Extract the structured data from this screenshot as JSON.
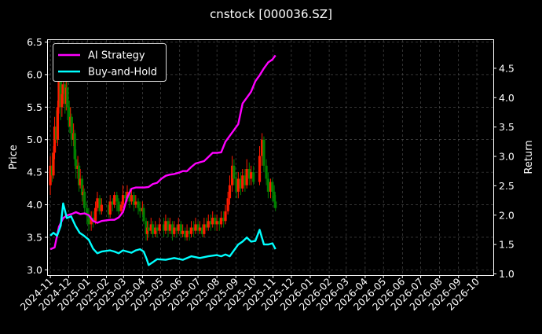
{
  "chart_data": {
    "type": "line",
    "title": "cnstock [000036.SZ]",
    "ylabel_left": "Price",
    "ylabel_right": "Return",
    "xlabel": "",
    "y_left_ticks": [
      "3.0",
      "3.5",
      "4.0",
      "4.5",
      "5.0",
      "5.5",
      "6.0",
      "6.5"
    ],
    "y_right_ticks": [
      "1.0",
      "1.5",
      "2.0",
      "2.5",
      "3.0",
      "3.5",
      "4.0",
      "4.5"
    ],
    "x_ticks": [
      "2024-11",
      "2024-12",
      "2025-01",
      "2025-02",
      "2025-03",
      "2025-04",
      "2025-05",
      "2025-06",
      "2025-07",
      "2025-08",
      "2025-09",
      "2025-10",
      "2025-11",
      "2025-12",
      "2026-01",
      "2026-02",
      "2026-03",
      "2026-04",
      "2026-05",
      "2026-06",
      "2026-07",
      "2026-08",
      "2026-09",
      "2026-10"
    ],
    "ylim_left": [
      2.92,
      6.53
    ],
    "ylim_right": [
      0.98,
      4.98
    ],
    "x_range": [
      "2024-10-28",
      "2026-10-28"
    ],
    "legend": {
      "position": "top-left",
      "entries": [
        "AI Strategy",
        "Buy-and-Hold"
      ]
    },
    "grid": true,
    "colors": {
      "ai": "#ff00ff",
      "bh": "#00ffff",
      "up": "#ff1a00",
      "down": "#008000",
      "background": "#000000",
      "grid": "#555555"
    },
    "series": [
      {
        "name": "AI Strategy",
        "axis": "right",
        "x": [
          "2024-11-01",
          "2024-11-08",
          "2024-11-15",
          "2024-11-22",
          "2024-11-29",
          "2024-12-06",
          "2024-12-13",
          "2024-12-20",
          "2024-12-27",
          "2025-01-03",
          "2025-01-10",
          "2025-01-17",
          "2025-01-24",
          "2025-02-07",
          "2025-02-14",
          "2025-02-21",
          "2025-02-28",
          "2025-03-07",
          "2025-03-14",
          "2025-03-21",
          "2025-03-28",
          "2025-04-04",
          "2025-04-11",
          "2025-04-18",
          "2025-04-25",
          "2025-05-02",
          "2025-05-09",
          "2025-05-16",
          "2025-05-23",
          "2025-05-30",
          "2025-06-06",
          "2025-06-13",
          "2025-06-20",
          "2025-06-27",
          "2025-07-04",
          "2025-07-11",
          "2025-07-18",
          "2025-07-25",
          "2025-08-01",
          "2025-08-08",
          "2025-08-15",
          "2025-08-22",
          "2025-08-29",
          "2025-09-05",
          "2025-09-12",
          "2025-09-19",
          "2025-09-26",
          "2025-10-03",
          "2025-10-10",
          "2025-10-17",
          "2025-10-24",
          "2025-10-31",
          "2025-11-05"
        ],
        "values": [
          1.42,
          1.45,
          1.8,
          1.95,
          2.0,
          2.02,
          2.05,
          2.02,
          2.03,
          2.0,
          1.9,
          1.87,
          1.9,
          1.92,
          1.92,
          1.96,
          2.05,
          2.3,
          2.45,
          2.47,
          2.47,
          2.47,
          2.48,
          2.53,
          2.55,
          2.62,
          2.67,
          2.69,
          2.7,
          2.72,
          2.75,
          2.75,
          2.82,
          2.88,
          2.9,
          2.92,
          2.99,
          3.06,
          3.06,
          3.07,
          3.25,
          3.35,
          3.45,
          3.55,
          3.9,
          4.0,
          4.1,
          4.28,
          4.38,
          4.5,
          4.6,
          4.65,
          4.72
        ]
      },
      {
        "name": "Buy-and-Hold",
        "axis": "right",
        "x": [
          "2024-11-01",
          "2024-11-06",
          "2024-11-12",
          "2024-11-18",
          "2024-11-22",
          "2024-11-28",
          "2024-12-05",
          "2024-12-12",
          "2024-12-19",
          "2024-12-26",
          "2025-01-03",
          "2025-01-10",
          "2025-01-17",
          "2025-01-24",
          "2025-02-07",
          "2025-02-14",
          "2025-02-21",
          "2025-02-28",
          "2025-03-07",
          "2025-03-14",
          "2025-03-21",
          "2025-03-28",
          "2025-04-03",
          "2025-04-08",
          "2025-04-11",
          "2025-04-18",
          "2025-04-25",
          "2025-05-09",
          "2025-05-23",
          "2025-06-06",
          "2025-06-20",
          "2025-07-04",
          "2025-07-18",
          "2025-08-01",
          "2025-08-08",
          "2025-08-15",
          "2025-08-22",
          "2025-08-29",
          "2025-09-05",
          "2025-09-12",
          "2025-09-19",
          "2025-09-26",
          "2025-10-03",
          "2025-10-10",
          "2025-10-17",
          "2025-10-24",
          "2025-10-31",
          "2025-11-05"
        ],
        "values": [
          1.65,
          1.7,
          1.65,
          1.82,
          2.2,
          1.95,
          1.98,
          1.82,
          1.7,
          1.65,
          1.58,
          1.43,
          1.35,
          1.38,
          1.4,
          1.38,
          1.35,
          1.4,
          1.38,
          1.36,
          1.4,
          1.42,
          1.38,
          1.25,
          1.15,
          1.2,
          1.25,
          1.24,
          1.27,
          1.24,
          1.3,
          1.27,
          1.3,
          1.32,
          1.3,
          1.33,
          1.3,
          1.4,
          1.5,
          1.55,
          1.62,
          1.55,
          1.56,
          1.75,
          1.5,
          1.5,
          1.52,
          1.42
        ]
      }
    ],
    "candles": [
      {
        "x": "2024-11-01",
        "open": 4.3,
        "close": 4.6,
        "high": 4.75,
        "low": 4.15
      },
      {
        "x": "2024-11-04",
        "open": 4.6,
        "close": 4.45,
        "high": 4.8,
        "low": 4.35
      },
      {
        "x": "2024-11-06",
        "open": 4.45,
        "close": 4.8,
        "high": 4.9,
        "low": 4.4
      },
      {
        "x": "2024-11-08",
        "open": 4.8,
        "close": 5.2,
        "high": 5.35,
        "low": 4.7
      },
      {
        "x": "2024-11-11",
        "open": 5.2,
        "close": 5.0,
        "high": 5.45,
        "low": 4.95
      },
      {
        "x": "2024-11-13",
        "open": 5.0,
        "close": 5.5,
        "high": 5.6,
        "low": 4.9
      },
      {
        "x": "2024-11-15",
        "open": 5.5,
        "close": 5.9,
        "high": 6.15,
        "low": 5.4
      },
      {
        "x": "2024-11-18",
        "open": 5.9,
        "close": 5.5,
        "high": 6.0,
        "low": 5.3
      },
      {
        "x": "2024-11-20",
        "open": 5.5,
        "close": 5.7,
        "high": 5.85,
        "low": 5.35
      },
      {
        "x": "2024-11-22",
        "open": 5.7,
        "close": 5.85,
        "high": 6.0,
        "low": 5.55
      },
      {
        "x": "2024-11-25",
        "open": 5.85,
        "close": 5.55,
        "high": 5.95,
        "low": 5.4
      },
      {
        "x": "2024-11-27",
        "open": 5.55,
        "close": 5.8,
        "high": 5.9,
        "low": 5.45
      },
      {
        "x": "2024-11-29",
        "open": 5.8,
        "close": 5.5,
        "high": 5.9,
        "low": 5.3
      },
      {
        "x": "2024-12-02",
        "open": 5.5,
        "close": 5.2,
        "high": 5.6,
        "low": 5.1
      },
      {
        "x": "2024-12-04",
        "open": 5.2,
        "close": 5.35,
        "high": 5.5,
        "low": 5.1
      },
      {
        "x": "2024-12-06",
        "open": 5.35,
        "close": 5.0,
        "high": 5.4,
        "low": 4.9
      },
      {
        "x": "2024-12-09",
        "open": 5.0,
        "close": 5.1,
        "high": 5.25,
        "low": 4.9
      },
      {
        "x": "2024-12-11",
        "open": 5.1,
        "close": 4.7,
        "high": 5.15,
        "low": 4.6
      },
      {
        "x": "2024-12-13",
        "open": 4.7,
        "close": 4.55,
        "high": 4.85,
        "low": 4.4
      },
      {
        "x": "2024-12-16",
        "open": 4.55,
        "close": 4.6,
        "high": 4.75,
        "low": 4.4
      },
      {
        "x": "2024-12-18",
        "open": 4.6,
        "close": 4.3,
        "high": 4.65,
        "low": 4.2
      },
      {
        "x": "2024-12-20",
        "open": 4.3,
        "close": 4.4,
        "high": 4.55,
        "low": 4.25
      },
      {
        "x": "2024-12-23",
        "open": 4.4,
        "close": 4.15,
        "high": 4.45,
        "low": 4.05
      },
      {
        "x": "2024-12-25",
        "open": 4.15,
        "close": 4.2,
        "high": 4.3,
        "low": 4.0
      },
      {
        "x": "2024-12-27",
        "open": 4.2,
        "close": 3.95,
        "high": 4.25,
        "low": 3.85
      },
      {
        "x": "2024-12-31",
        "open": 3.95,
        "close": 3.85,
        "high": 4.05,
        "low": 3.7
      },
      {
        "x": "2025-01-03",
        "open": 3.85,
        "close": 3.7,
        "high": 3.95,
        "low": 3.6
      },
      {
        "x": "2025-01-07",
        "open": 3.7,
        "close": 3.8,
        "high": 3.9,
        "low": 3.6
      },
      {
        "x": "2025-01-10",
        "open": 3.8,
        "close": 3.75,
        "high": 3.9,
        "low": 3.65
      },
      {
        "x": "2025-01-14",
        "open": 3.75,
        "close": 3.95,
        "high": 4.05,
        "low": 3.7
      },
      {
        "x": "2025-01-17",
        "open": 3.95,
        "close": 4.1,
        "high": 4.2,
        "low": 3.9
      },
      {
        "x": "2025-01-21",
        "open": 4.1,
        "close": 3.9,
        "high": 4.15,
        "low": 3.85
      },
      {
        "x": "2025-01-24",
        "open": 3.9,
        "close": 4.0,
        "high": 4.1,
        "low": 3.85
      },
      {
        "x": "2025-02-05",
        "open": 4.0,
        "close": 3.85,
        "high": 4.05,
        "low": 3.8
      },
      {
        "x": "2025-02-07",
        "open": 3.85,
        "close": 4.05,
        "high": 4.15,
        "low": 3.8
      },
      {
        "x": "2025-02-11",
        "open": 4.05,
        "close": 4.0,
        "high": 4.1,
        "low": 3.9
      },
      {
        "x": "2025-02-14",
        "open": 4.0,
        "close": 4.15,
        "high": 4.2,
        "low": 3.95
      },
      {
        "x": "2025-02-18",
        "open": 4.15,
        "close": 4.05,
        "high": 4.2,
        "low": 3.9
      },
      {
        "x": "2025-02-21",
        "open": 4.05,
        "close": 3.9,
        "high": 4.1,
        "low": 3.85
      },
      {
        "x": "2025-02-25",
        "open": 3.9,
        "close": 4.0,
        "high": 4.05,
        "low": 3.85
      },
      {
        "x": "2025-02-28",
        "open": 4.0,
        "close": 4.15,
        "high": 4.3,
        "low": 3.95
      },
      {
        "x": "2025-03-04",
        "open": 4.15,
        "close": 4.1,
        "high": 4.2,
        "low": 4.0
      },
      {
        "x": "2025-03-07",
        "open": 4.1,
        "close": 4.2,
        "high": 4.3,
        "low": 4.05
      },
      {
        "x": "2025-03-11",
        "open": 4.2,
        "close": 4.05,
        "high": 4.25,
        "low": 3.95
      },
      {
        "x": "2025-03-14",
        "open": 4.05,
        "close": 4.15,
        "high": 4.25,
        "low": 4.0
      },
      {
        "x": "2025-03-18",
        "open": 4.15,
        "close": 4.0,
        "high": 4.2,
        "low": 3.9
      },
      {
        "x": "2025-03-21",
        "open": 4.0,
        "close": 4.05,
        "high": 4.15,
        "low": 3.95
      },
      {
        "x": "2025-03-25",
        "open": 4.05,
        "close": 3.95,
        "high": 4.1,
        "low": 3.85
      },
      {
        "x": "2025-03-28",
        "open": 3.95,
        "close": 3.9,
        "high": 4.05,
        "low": 3.8
      },
      {
        "x": "2025-04-01",
        "open": 3.9,
        "close": 3.95,
        "high": 4.05,
        "low": 3.85
      },
      {
        "x": "2025-04-03",
        "open": 3.95,
        "close": 3.75,
        "high": 4.0,
        "low": 3.7
      },
      {
        "x": "2025-04-07",
        "open": 3.75,
        "close": 3.55,
        "high": 3.8,
        "low": 3.45
      },
      {
        "x": "2025-04-09",
        "open": 3.55,
        "close": 3.65,
        "high": 3.75,
        "low": 3.45
      },
      {
        "x": "2025-04-11",
        "open": 3.65,
        "close": 3.6,
        "high": 3.75,
        "low": 3.5
      },
      {
        "x": "2025-04-15",
        "open": 3.6,
        "close": 3.7,
        "high": 3.8,
        "low": 3.55
      },
      {
        "x": "2025-04-18",
        "open": 3.7,
        "close": 3.55,
        "high": 3.75,
        "low": 3.5
      },
      {
        "x": "2025-04-22",
        "open": 3.55,
        "close": 3.65,
        "high": 3.75,
        "low": 3.5
      },
      {
        "x": "2025-04-25",
        "open": 3.65,
        "close": 3.6,
        "high": 3.7,
        "low": 3.5
      },
      {
        "x": "2025-04-29",
        "open": 3.6,
        "close": 3.7,
        "high": 3.8,
        "low": 3.55
      },
      {
        "x": "2025-05-06",
        "open": 3.7,
        "close": 3.6,
        "high": 3.8,
        "low": 3.5
      },
      {
        "x": "2025-05-09",
        "open": 3.6,
        "close": 3.75,
        "high": 3.85,
        "low": 3.55
      },
      {
        "x": "2025-05-13",
        "open": 3.75,
        "close": 3.6,
        "high": 3.8,
        "low": 3.5
      },
      {
        "x": "2025-05-16",
        "open": 3.6,
        "close": 3.7,
        "high": 3.8,
        "low": 3.55
      },
      {
        "x": "2025-05-20",
        "open": 3.7,
        "close": 3.55,
        "high": 3.75,
        "low": 3.45
      },
      {
        "x": "2025-05-23",
        "open": 3.55,
        "close": 3.65,
        "high": 3.75,
        "low": 3.5
      },
      {
        "x": "2025-05-27",
        "open": 3.65,
        "close": 3.6,
        "high": 3.7,
        "low": 3.5
      },
      {
        "x": "2025-05-30",
        "open": 3.6,
        "close": 3.7,
        "high": 3.8,
        "low": 3.55
      },
      {
        "x": "2025-06-03",
        "open": 3.7,
        "close": 3.55,
        "high": 3.75,
        "low": 3.5
      },
      {
        "x": "2025-06-06",
        "open": 3.55,
        "close": 3.6,
        "high": 3.7,
        "low": 3.5
      },
      {
        "x": "2025-06-10",
        "open": 3.6,
        "close": 3.5,
        "high": 3.65,
        "low": 3.45
      },
      {
        "x": "2025-06-13",
        "open": 3.5,
        "close": 3.6,
        "high": 3.7,
        "low": 3.45
      },
      {
        "x": "2025-06-17",
        "open": 3.6,
        "close": 3.55,
        "high": 3.65,
        "low": 3.45
      },
      {
        "x": "2025-06-20",
        "open": 3.55,
        "close": 3.65,
        "high": 3.75,
        "low": 3.5
      },
      {
        "x": "2025-06-24",
        "open": 3.65,
        "close": 3.6,
        "high": 3.75,
        "low": 3.5
      },
      {
        "x": "2025-06-27",
        "open": 3.6,
        "close": 3.7,
        "high": 3.8,
        "low": 3.55
      },
      {
        "x": "2025-07-01",
        "open": 3.7,
        "close": 3.6,
        "high": 3.75,
        "low": 3.55
      },
      {
        "x": "2025-07-04",
        "open": 3.6,
        "close": 3.65,
        "high": 3.75,
        "low": 3.55
      },
      {
        "x": "2025-07-08",
        "open": 3.65,
        "close": 3.55,
        "high": 3.7,
        "low": 3.5
      },
      {
        "x": "2025-07-11",
        "open": 3.55,
        "close": 3.7,
        "high": 3.8,
        "low": 3.5
      },
      {
        "x": "2025-07-15",
        "open": 3.7,
        "close": 3.65,
        "high": 3.8,
        "low": 3.6
      },
      {
        "x": "2025-07-18",
        "open": 3.65,
        "close": 3.75,
        "high": 3.85,
        "low": 3.6
      },
      {
        "x": "2025-07-22",
        "open": 3.75,
        "close": 3.7,
        "high": 3.85,
        "low": 3.6
      },
      {
        "x": "2025-07-25",
        "open": 3.7,
        "close": 3.8,
        "high": 3.9,
        "low": 3.65
      },
      {
        "x": "2025-07-29",
        "open": 3.8,
        "close": 3.7,
        "high": 3.85,
        "low": 3.6
      },
      {
        "x": "2025-08-01",
        "open": 3.7,
        "close": 3.75,
        "high": 3.85,
        "low": 3.6
      },
      {
        "x": "2025-08-05",
        "open": 3.75,
        "close": 3.7,
        "high": 3.8,
        "low": 3.6
      },
      {
        "x": "2025-08-08",
        "open": 3.7,
        "close": 3.8,
        "high": 3.9,
        "low": 3.65
      },
      {
        "x": "2025-08-12",
        "open": 3.8,
        "close": 3.75,
        "high": 3.9,
        "low": 3.65
      },
      {
        "x": "2025-08-15",
        "open": 3.75,
        "close": 3.9,
        "high": 4.0,
        "low": 3.7
      },
      {
        "x": "2025-08-19",
        "open": 3.9,
        "close": 4.1,
        "high": 4.2,
        "low": 3.85
      },
      {
        "x": "2025-08-22",
        "open": 4.1,
        "close": 4.3,
        "high": 4.45,
        "low": 4.0
      },
      {
        "x": "2025-08-26",
        "open": 4.3,
        "close": 4.6,
        "high": 4.75,
        "low": 4.2
      },
      {
        "x": "2025-08-29",
        "open": 4.6,
        "close": 4.4,
        "high": 4.7,
        "low": 4.3
      },
      {
        "x": "2025-09-02",
        "open": 4.4,
        "close": 4.2,
        "high": 4.5,
        "low": 4.1
      },
      {
        "x": "2025-09-05",
        "open": 4.2,
        "close": 4.4,
        "high": 4.5,
        "low": 4.1
      },
      {
        "x": "2025-09-09",
        "open": 4.4,
        "close": 4.25,
        "high": 4.5,
        "low": 4.15
      },
      {
        "x": "2025-09-12",
        "open": 4.25,
        "close": 4.45,
        "high": 4.55,
        "low": 4.2
      },
      {
        "x": "2025-09-16",
        "open": 4.45,
        "close": 4.3,
        "high": 4.55,
        "low": 4.2
      },
      {
        "x": "2025-09-19",
        "open": 4.3,
        "close": 4.55,
        "high": 4.7,
        "low": 4.25
      },
      {
        "x": "2025-09-23",
        "open": 4.55,
        "close": 4.4,
        "high": 4.65,
        "low": 4.3
      },
      {
        "x": "2025-09-26",
        "open": 4.4,
        "close": 4.5,
        "high": 4.6,
        "low": 4.3
      },
      {
        "x": "2025-09-30",
        "open": 4.5,
        "close": 4.35,
        "high": 4.6,
        "low": 4.3
      },
      {
        "x": "2025-10-10",
        "open": 4.35,
        "close": 4.75,
        "high": 4.9,
        "low": 4.3
      },
      {
        "x": "2025-10-14",
        "open": 4.75,
        "close": 5.0,
        "high": 5.1,
        "low": 4.6
      },
      {
        "x": "2025-10-17",
        "open": 5.0,
        "close": 4.6,
        "high": 5.05,
        "low": 4.5
      },
      {
        "x": "2025-10-21",
        "open": 4.6,
        "close": 4.4,
        "high": 4.7,
        "low": 4.3
      },
      {
        "x": "2025-10-24",
        "open": 4.4,
        "close": 4.2,
        "high": 4.5,
        "low": 4.1
      },
      {
        "x": "2025-10-28",
        "open": 4.2,
        "close": 4.35,
        "high": 4.4,
        "low": 4.1
      },
      {
        "x": "2025-10-31",
        "open": 4.35,
        "close": 4.2,
        "high": 4.4,
        "low": 4.05
      },
      {
        "x": "2025-11-03",
        "open": 4.2,
        "close": 4.05,
        "high": 4.3,
        "low": 3.95
      },
      {
        "x": "2025-11-05",
        "open": 4.05,
        "close": 3.95,
        "high": 4.15,
        "low": 3.9
      }
    ]
  }
}
